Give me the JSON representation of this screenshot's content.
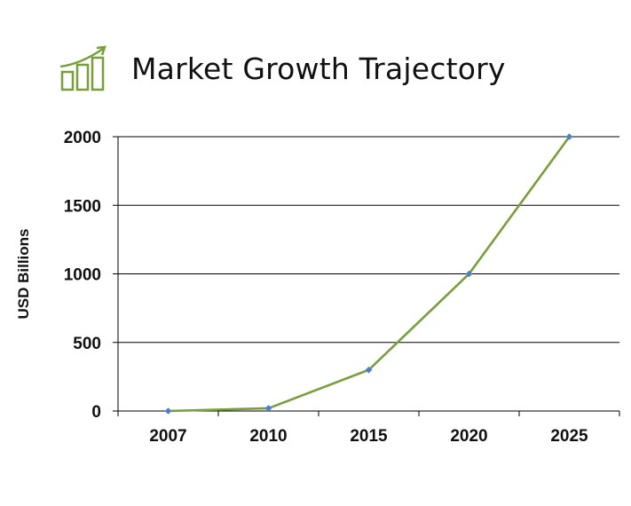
{
  "chart_data": {
    "type": "line",
    "title": "Market Growth Trajectory",
    "ylabel": "USD Billions",
    "xlabel": "",
    "categories": [
      "2007",
      "2010",
      "2015",
      "2020",
      "2025"
    ],
    "values": [
      0,
      20,
      300,
      1000,
      2000
    ],
    "ylim": [
      0,
      2000
    ],
    "yticks": [
      0,
      500,
      1000,
      1500,
      2000
    ],
    "grid": true,
    "legend": "none",
    "colors": {
      "line": "#77a03a",
      "marker": "#4a7fcb",
      "grid": "#000000",
      "icon": "#77a03a"
    },
    "icon": "growth-chart-icon"
  }
}
